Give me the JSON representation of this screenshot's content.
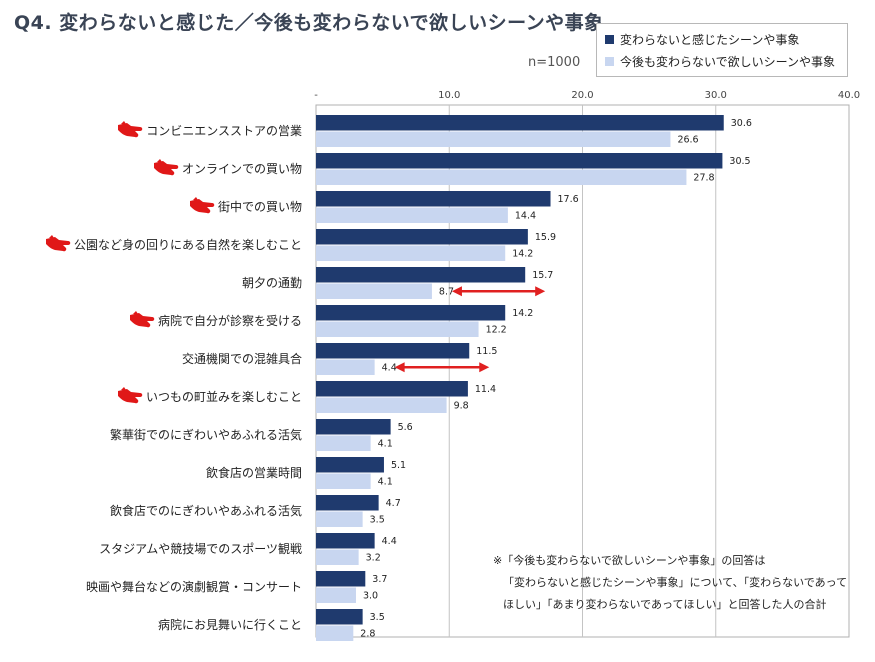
{
  "title": "Q4. 変わらないと感じた／今後も変わらないで欲しいシーンや事象",
  "sample_label": "n=1000",
  "note": [
    "※「今後も変わらないで欲しいシーンや事象」の回答は",
    "「変わらないと感じたシーンや事象」について、「変わらないであって",
    "ほしい」「あまり変わらないであってほしい」と回答した人の合計"
  ],
  "colors": {
    "series1": "#1f3a6e",
    "series2": "#c8d6f0",
    "arrow": "#e02020",
    "pointer_icon": "#e01818"
  },
  "chart_data": {
    "type": "bar",
    "orientation": "horizontal",
    "xlim": [
      0,
      40
    ],
    "x_ticks": [
      "-",
      "10.0",
      "20.0",
      "30.0",
      "40.0"
    ],
    "grid": true,
    "legend_position": "top-right",
    "categories": [
      "コンビニエンスストアの営業",
      "オンラインでの買い物",
      "街中での買い物",
      "公園など身の回りにある自然を楽しむこと",
      "朝夕の通勤",
      "病院で自分が診察を受ける",
      "交通機関での混雑具合",
      "いつもの町並みを楽しむこと",
      "繁華街でのにぎわいやあふれる活気",
      "飲食店の営業時間",
      "飲食店でのにぎわいやあふれる活気",
      "スタジアムや競技場でのスポーツ観戦",
      "映画や舞台などの演劇観賞・コンサート",
      "病院にお見舞いに行くこと"
    ],
    "highlighted": [
      true,
      true,
      true,
      true,
      false,
      true,
      false,
      true,
      false,
      false,
      false,
      false,
      false,
      false
    ],
    "arrows_on": [
      4,
      6
    ],
    "series": [
      {
        "name": "変わらないと感じたシーンや事象",
        "values": [
          30.6,
          30.5,
          17.6,
          15.9,
          15.7,
          14.2,
          11.5,
          11.4,
          5.6,
          5.1,
          4.7,
          4.4,
          3.7,
          3.5
        ],
        "labels": [
          "30.6",
          "30.5",
          "17.6",
          "15.9",
          "15.7",
          "14.2",
          "11.5",
          "11.4",
          "5.6",
          "5.1",
          "4.7",
          "4.4",
          "3.7",
          "3.5"
        ]
      },
      {
        "name": "今後も変わらないで欲しいシーンや事象",
        "values": [
          26.6,
          27.8,
          14.4,
          14.2,
          8.7,
          12.2,
          4.4,
          9.8,
          4.1,
          4.1,
          3.5,
          3.2,
          3.0,
          2.8
        ],
        "labels": [
          "26.6",
          "27.8",
          "14.4",
          "14.2",
          "8.7",
          "12.2",
          "4.4",
          "9.8",
          "4.1",
          "4.1",
          "3.5",
          "3.2",
          "3.0",
          "2.8"
        ]
      }
    ]
  }
}
